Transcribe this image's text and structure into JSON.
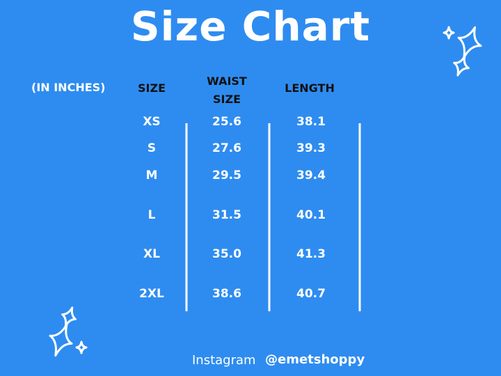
{
  "title": "Size Chart",
  "table": {
    "note": "(IN INCHES)",
    "headers": [
      "SIZE",
      "WAIST SIZE",
      "LENGTH"
    ],
    "rows": [
      [
        "XS",
        "25.6",
        "38.1"
      ],
      [
        "S",
        "27.6",
        "39.3"
      ],
      [
        "M",
        "29.5",
        "39.4"
      ],
      [
        "L",
        "31.5",
        "40.1"
      ],
      [
        "XL",
        "35.0",
        "41.3"
      ],
      [
        "2XL",
        "38.6",
        "40.7"
      ]
    ]
  },
  "footer": {
    "label": "Instagram",
    "handle": "@emetshoppy"
  }
}
